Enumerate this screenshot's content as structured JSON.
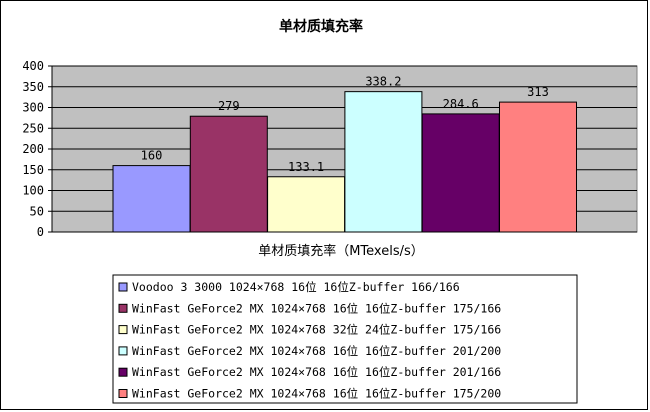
{
  "chart_data": {
    "type": "bar",
    "title": "单材质填充率",
    "xlabel": "单材质填充率（MTexels/s）",
    "ylabel": "",
    "ylim": [
      0,
      400
    ],
    "yticks": [
      0,
      50,
      100,
      150,
      200,
      250,
      300,
      350,
      400
    ],
    "grid": true,
    "legend_position": "bottom",
    "plot_background": "#c0c0c0",
    "series": [
      {
        "name": "Voodoo 3 3000 1024×768 16位 16位Z-buffer 166/166",
        "value": 160,
        "label": "160",
        "color": "#9999ff"
      },
      {
        "name": "WinFast GeForce2 MX 1024×768 16位 16位Z-buffer 175/166",
        "value": 279,
        "label": "279",
        "color": "#993366"
      },
      {
        "name": "WinFast GeForce2 MX 1024×768 32位 24位Z-buffer 175/166",
        "value": 133.1,
        "label": "133.1",
        "color": "#ffffcc"
      },
      {
        "name": "WinFast GeForce2 MX 1024×768 16位 16位Z-buffer 201/200",
        "value": 338.2,
        "label": "338.2",
        "color": "#ccffff"
      },
      {
        "name": "WinFast GeForce2 MX 1024×768 16位 16位Z-buffer 201/166",
        "value": 284.6,
        "label": "284.6",
        "color": "#660066"
      },
      {
        "name": "WinFast GeForce2 MX 1024×768 16位 16位Z-buffer 175/200",
        "value": 313,
        "label": "313",
        "color": "#ff8080"
      }
    ]
  }
}
